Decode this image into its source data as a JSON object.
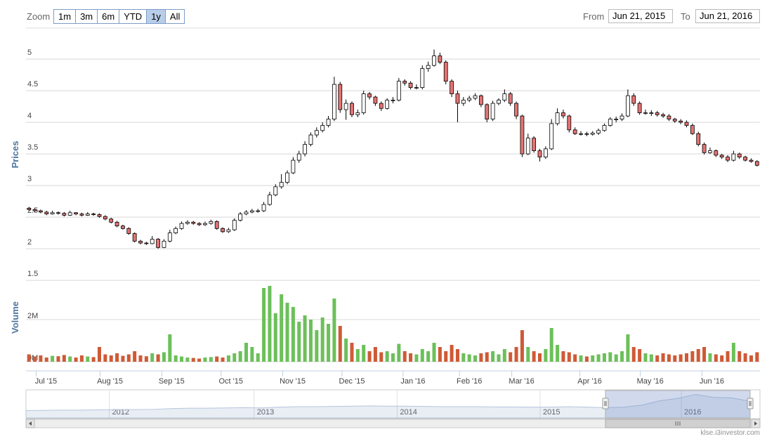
{
  "chart_data": {
    "type": "candlestick",
    "ylabel": "Prices",
    "ylim": [
      1.49,
      5.49
    ],
    "yticks": [
      1.5,
      2,
      2.5,
      3,
      3.5,
      4,
      4.5,
      5
    ],
    "grid": true,
    "xlim": [
      -0.5,
      124.5
    ],
    "xticks": [
      {
        "value": 2.9,
        "label": "Jul '15"
      },
      {
        "value": 13.8,
        "label": "Aug '15"
      },
      {
        "value": 24.3,
        "label": "Sep '15"
      },
      {
        "value": 34.4,
        "label": "Oct '15"
      },
      {
        "value": 44.9,
        "label": "Nov '15"
      },
      {
        "value": 55,
        "label": "Dec '15"
      },
      {
        "value": 65.4,
        "label": "Jan '16"
      },
      {
        "value": 75,
        "label": "Feb '16"
      },
      {
        "value": 83.9,
        "label": "Mar '16"
      },
      {
        "value": 95.5,
        "label": "Apr '16"
      },
      {
        "value": 105.8,
        "label": "May '16"
      },
      {
        "value": 116.3,
        "label": "Jun '16"
      }
    ],
    "candles": {
      "up_color": "#ffffff",
      "down_color": "#e57373",
      "values": [
        [
          2.64,
          2.66,
          2.6,
          2.62
        ],
        [
          2.62,
          2.64,
          2.58,
          2.6
        ],
        [
          2.6,
          2.62,
          2.56,
          2.58
        ],
        [
          2.58,
          2.6,
          2.53,
          2.55
        ],
        [
          2.55,
          2.6,
          2.54,
          2.57
        ],
        [
          2.57,
          2.59,
          2.54,
          2.56
        ],
        [
          2.56,
          2.58,
          2.51,
          2.53
        ],
        [
          2.53,
          2.6,
          2.52,
          2.57
        ],
        [
          2.57,
          2.58,
          2.53,
          2.55
        ],
        [
          2.55,
          2.57,
          2.51,
          2.53
        ],
        [
          2.53,
          2.58,
          2.52,
          2.55
        ],
        [
          2.55,
          2.57,
          2.52,
          2.54
        ],
        [
          2.54,
          2.56,
          2.49,
          2.51
        ],
        [
          2.51,
          2.53,
          2.45,
          2.47
        ],
        [
          2.47,
          2.49,
          2.4,
          2.42
        ],
        [
          2.42,
          2.44,
          2.34,
          2.36
        ],
        [
          2.36,
          2.38,
          2.3,
          2.32
        ],
        [
          2.32,
          2.34,
          2.22,
          2.24
        ],
        [
          2.24,
          2.26,
          2.1,
          2.12
        ],
        [
          2.12,
          2.14,
          2.07,
          2.09
        ],
        [
          2.09,
          2.11,
          2.06,
          2.08
        ],
        [
          2.08,
          2.2,
          2.07,
          2.15
        ],
        [
          2.15,
          2.17,
          2.0,
          2.02
        ],
        [
          2.02,
          2.15,
          2.01,
          2.12
        ],
        [
          2.12,
          2.3,
          2.1,
          2.25
        ],
        [
          2.25,
          2.35,
          2.23,
          2.32
        ],
        [
          2.32,
          2.43,
          2.3,
          2.4
        ],
        [
          2.4,
          2.45,
          2.38,
          2.42
        ],
        [
          2.42,
          2.44,
          2.38,
          2.4
        ],
        [
          2.4,
          2.42,
          2.36,
          2.38
        ],
        [
          2.38,
          2.43,
          2.36,
          2.4
        ],
        [
          2.4,
          2.46,
          2.38,
          2.43
        ],
        [
          2.43,
          2.45,
          2.3,
          2.32
        ],
        [
          2.32,
          2.34,
          2.25,
          2.27
        ],
        [
          2.27,
          2.33,
          2.25,
          2.3
        ],
        [
          2.3,
          2.48,
          2.28,
          2.45
        ],
        [
          2.45,
          2.58,
          2.43,
          2.55
        ],
        [
          2.55,
          2.61,
          2.53,
          2.58
        ],
        [
          2.58,
          2.63,
          2.56,
          2.6
        ],
        [
          2.6,
          2.63,
          2.57,
          2.6
        ],
        [
          2.6,
          2.74,
          2.58,
          2.7
        ],
        [
          2.7,
          2.9,
          2.68,
          2.85
        ],
        [
          2.85,
          3.02,
          2.83,
          2.98
        ],
        [
          2.98,
          3.18,
          2.95,
          3.05
        ],
        [
          3.05,
          3.24,
          3.02,
          3.2
        ],
        [
          3.2,
          3.45,
          3.18,
          3.4
        ],
        [
          3.4,
          3.55,
          3.36,
          3.5
        ],
        [
          3.5,
          3.7,
          3.46,
          3.65
        ],
        [
          3.65,
          3.84,
          3.62,
          3.8
        ],
        [
          3.8,
          3.92,
          3.76,
          3.87
        ],
        [
          3.87,
          4.0,
          3.84,
          3.95
        ],
        [
          3.95,
          4.1,
          3.92,
          4.05
        ],
        [
          4.05,
          4.72,
          4.02,
          4.6
        ],
        [
          4.6,
          4.64,
          4.15,
          4.2
        ],
        [
          4.2,
          4.36,
          4.04,
          4.3
        ],
        [
          4.3,
          4.33,
          4.08,
          4.12
        ],
        [
          4.12,
          4.2,
          4.08,
          4.15
        ],
        [
          4.15,
          4.5,
          4.12,
          4.45
        ],
        [
          4.45,
          4.48,
          4.36,
          4.4
        ],
        [
          4.4,
          4.42,
          4.26,
          4.3
        ],
        [
          4.3,
          4.33,
          4.18,
          4.22
        ],
        [
          4.22,
          4.38,
          4.2,
          4.35
        ],
        [
          4.35,
          4.4,
          4.3,
          4.35
        ],
        [
          4.35,
          4.7,
          4.33,
          4.65
        ],
        [
          4.65,
          4.68,
          4.58,
          4.62
        ],
        [
          4.62,
          4.65,
          4.52,
          4.55
        ],
        [
          4.55,
          4.6,
          4.52,
          4.55
        ],
        [
          4.55,
          4.9,
          4.52,
          4.85
        ],
        [
          4.85,
          4.96,
          4.8,
          4.9
        ],
        [
          4.9,
          5.15,
          4.88,
          5.05
        ],
        [
          5.05,
          5.1,
          4.92,
          4.95
        ],
        [
          4.95,
          4.98,
          4.6,
          4.65
        ],
        [
          4.65,
          4.68,
          4.4,
          4.45
        ],
        [
          4.45,
          4.5,
          4.0,
          4.3
        ],
        [
          4.3,
          4.4,
          4.26,
          4.35
        ],
        [
          4.35,
          4.42,
          4.32,
          4.38
        ],
        [
          4.38,
          4.46,
          4.35,
          4.42
        ],
        [
          4.42,
          4.44,
          4.24,
          4.28
        ],
        [
          4.28,
          4.3,
          4.0,
          4.05
        ],
        [
          4.05,
          4.34,
          4.02,
          4.3
        ],
        [
          4.3,
          4.38,
          4.27,
          4.35
        ],
        [
          4.35,
          4.52,
          4.32,
          4.45
        ],
        [
          4.45,
          4.48,
          4.26,
          4.3
        ],
        [
          4.3,
          4.33,
          4.05,
          4.1
        ],
        [
          4.1,
          4.12,
          3.45,
          3.5
        ],
        [
          3.5,
          3.82,
          3.48,
          3.75
        ],
        [
          3.75,
          3.78,
          3.52,
          3.55
        ],
        [
          3.55,
          3.58,
          3.38,
          3.45
        ],
        [
          3.45,
          3.62,
          3.42,
          3.58
        ],
        [
          3.58,
          4.05,
          3.56,
          3.98
        ],
        [
          3.98,
          4.22,
          3.95,
          4.15
        ],
        [
          4.15,
          4.2,
          4.06,
          4.1
        ],
        [
          4.1,
          4.12,
          3.84,
          3.88
        ],
        [
          3.88,
          3.92,
          3.8,
          3.82
        ],
        [
          3.82,
          3.86,
          3.79,
          3.82
        ],
        [
          3.82,
          3.85,
          3.78,
          3.81
        ],
        [
          3.81,
          3.86,
          3.79,
          3.83
        ],
        [
          3.83,
          3.9,
          3.8,
          3.87
        ],
        [
          3.87,
          3.98,
          3.85,
          3.95
        ],
        [
          3.95,
          4.08,
          3.93,
          4.05
        ],
        [
          4.05,
          4.09,
          4.0,
          4.05
        ],
        [
          4.05,
          4.14,
          4.02,
          4.1
        ],
        [
          4.1,
          4.52,
          4.08,
          4.42
        ],
        [
          4.42,
          4.46,
          4.26,
          4.3
        ],
        [
          4.3,
          4.33,
          4.12,
          4.15
        ],
        [
          4.15,
          4.2,
          4.12,
          4.15
        ],
        [
          4.15,
          4.19,
          4.1,
          4.15
        ],
        [
          4.15,
          4.18,
          4.09,
          4.12
        ],
        [
          4.12,
          4.15,
          4.07,
          4.1
        ],
        [
          4.1,
          4.13,
          4.02,
          4.05
        ],
        [
          4.05,
          4.07,
          3.99,
          4.02
        ],
        [
          4.02,
          4.05,
          3.97,
          4.0
        ],
        [
          4.0,
          4.03,
          3.92,
          3.95
        ],
        [
          3.95,
          3.98,
          3.8,
          3.82
        ],
        [
          3.82,
          3.85,
          3.62,
          3.65
        ],
        [
          3.65,
          3.68,
          3.49,
          3.52
        ],
        [
          3.52,
          3.6,
          3.5,
          3.55
        ],
        [
          3.55,
          3.57,
          3.45,
          3.48
        ],
        [
          3.48,
          3.5,
          3.42,
          3.45
        ],
        [
          3.45,
          3.48,
          3.37,
          3.4
        ],
        [
          3.4,
          3.55,
          3.38,
          3.5
        ],
        [
          3.5,
          3.52,
          3.42,
          3.45
        ],
        [
          3.45,
          3.47,
          3.38,
          3.4
        ],
        [
          3.4,
          3.43,
          3.36,
          3.38
        ],
        [
          3.38,
          3.4,
          3.3,
          3.32
        ]
      ]
    },
    "volume": {
      "label": "Volume",
      "up_color": "#6cc05a",
      "down_color": "#cf5a36",
      "ylim": [
        0,
        3700000
      ],
      "yticks": [
        {
          "value": 0,
          "label": "0M"
        },
        {
          "value": 2000000,
          "label": "2M"
        }
      ],
      "values": [
        350000,
        250000,
        300000,
        200000,
        280000,
        260000,
        320000,
        250000,
        200000,
        300000,
        250000,
        220000,
        700000,
        350000,
        300000,
        400000,
        280000,
        350000,
        500000,
        300000,
        260000,
        400000,
        350000,
        450000,
        1300000,
        300000,
        250000,
        200000,
        180000,
        150000,
        200000,
        220000,
        250000,
        200000,
        300000,
        400000,
        500000,
        900000,
        700000,
        400000,
        3500000,
        3600000,
        2300000,
        3200000,
        2800000,
        2600000,
        1900000,
        2200000,
        2000000,
        1500000,
        2100000,
        1800000,
        3000000,
        1700000,
        1100000,
        900000,
        600000,
        800000,
        500000,
        700000,
        450000,
        500000,
        400000,
        850000,
        500000,
        400000,
        350000,
        600000,
        500000,
        900000,
        700000,
        500000,
        800000,
        600000,
        400000,
        350000,
        300000,
        400000,
        450000,
        500000,
        350000,
        600000,
        450000,
        700000,
        1500000,
        700000,
        500000,
        400000,
        600000,
        1600000,
        800000,
        500000,
        450000,
        350000,
        300000,
        250000,
        300000,
        350000,
        400000,
        450000,
        350000,
        500000,
        1300000,
        700000,
        600000,
        400000,
        350000,
        300000,
        400000,
        350000,
        300000,
        350000,
        400000,
        500000,
        600000,
        700000,
        400000,
        350000,
        300000,
        500000,
        900000,
        500000,
        400000,
        300000,
        450000
      ]
    },
    "navigator": {
      "ylim": [
        0,
        5.6
      ],
      "values": [
        1.5,
        1.55,
        1.6,
        1.6,
        1.65,
        1.7,
        1.7,
        1.75,
        1.9,
        2.0,
        2.0,
        2.05,
        2.1,
        2.05,
        2.2,
        2.3,
        2.3,
        2.35,
        2.4,
        2.45,
        2.4,
        2.4,
        2.35,
        2.3,
        2.3,
        2.3,
        2.25,
        2.25,
        2.2,
        2.2,
        2.3,
        2.2,
        2.1,
        2.2,
        2.6,
        3.5,
        4.0,
        4.8,
        4.2,
        4.1,
        3.4
      ],
      "xticks": [
        {
          "value": 4.6,
          "label": "2012"
        },
        {
          "value": 12.6,
          "label": "2013"
        },
        {
          "value": 20.5,
          "label": "2014"
        },
        {
          "value": 28.4,
          "label": "2015"
        },
        {
          "value": 36.2,
          "label": "2016"
        }
      ]
    }
  },
  "zoom": {
    "label": "Zoom",
    "buttons": [
      "1m",
      "3m",
      "6m",
      "YTD",
      "1y",
      "All"
    ],
    "selected": 4
  },
  "range": {
    "from_label": "From",
    "from": "Jun 21, 2015",
    "to_label": "To",
    "to": "Jun 21, 2016"
  },
  "credit": "klse.i3investor.com"
}
